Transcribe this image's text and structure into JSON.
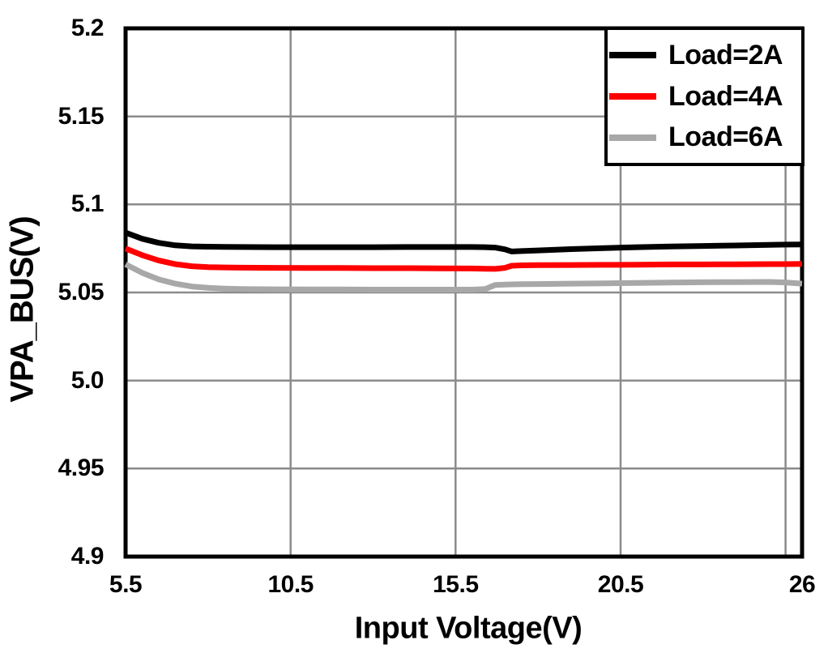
{
  "chart_data": {
    "type": "line",
    "title": "",
    "xlabel": "Input Voltage(V)",
    "ylabel": "VPA_BUS(V)",
    "xlim": [
      5.5,
      26
    ],
    "ylim": [
      4.9,
      5.2
    ],
    "grid": true,
    "legend_position": "top-right",
    "x_ticks": [
      {
        "value": 5.5,
        "label": "5.5"
      },
      {
        "value": 10.5,
        "label": "10.5"
      },
      {
        "value": 15.5,
        "label": "15.5"
      },
      {
        "value": 20.5,
        "label": "20.5"
      },
      {
        "value": 26,
        "label": "26"
      }
    ],
    "y_ticks": [
      {
        "value": 5.2,
        "label": "5.2"
      },
      {
        "value": 5.15,
        "label": "5.15"
      },
      {
        "value": 5.1,
        "label": "5.1"
      },
      {
        "value": 5.05,
        "label": "5.05"
      },
      {
        "value": 5.0,
        "label": "5.0"
      },
      {
        "value": 4.95,
        "label": "4.95"
      },
      {
        "value": 4.9,
        "label": "4.9"
      }
    ],
    "x_gridlines": [
      10.5,
      15.5,
      20.5,
      25.5
    ],
    "y_gridlines": [
      5.15,
      5.1,
      5.05,
      5.0,
      4.95
    ],
    "x": [
      5.5,
      6.0,
      6.5,
      7.0,
      7.5,
      8.0,
      8.5,
      9.0,
      10,
      11,
      12,
      13,
      14,
      15,
      16,
      16.4,
      16.7,
      17.0,
      17.2,
      17.5,
      18,
      19,
      20,
      21,
      22,
      23,
      24,
      25,
      25.5,
      26
    ],
    "series": [
      {
        "name": "Load=2A",
        "color": "#000000",
        "values": [
          5.084,
          5.0805,
          5.0782,
          5.0768,
          5.0762,
          5.076,
          5.0759,
          5.0758,
          5.0757,
          5.0757,
          5.0757,
          5.0757,
          5.0758,
          5.0758,
          5.0758,
          5.0757,
          5.0755,
          5.0745,
          5.0733,
          5.0735,
          5.0739,
          5.0746,
          5.0752,
          5.0757,
          5.0761,
          5.0764,
          5.0767,
          5.077,
          5.0772,
          5.0773
        ]
      },
      {
        "name": "Load=4A",
        "color": "#fe0000",
        "values": [
          5.075,
          5.0712,
          5.0682,
          5.0661,
          5.0649,
          5.0644,
          5.0642,
          5.0641,
          5.064,
          5.0639,
          5.0639,
          5.0638,
          5.0638,
          5.0637,
          5.0636,
          5.0635,
          5.0634,
          5.064,
          5.0652,
          5.0654,
          5.0655,
          5.0656,
          5.0657,
          5.0658,
          5.0659,
          5.0659,
          5.066,
          5.0661,
          5.0661,
          5.0662
        ]
      },
      {
        "name": "Load=6A",
        "color": "#a8a8a8",
        "values": [
          5.066,
          5.0612,
          5.0575,
          5.055,
          5.0534,
          5.0526,
          5.0522,
          5.052,
          5.0518,
          5.0517,
          5.0517,
          5.0516,
          5.0516,
          5.0516,
          5.0516,
          5.052,
          5.0543,
          5.0545,
          5.0546,
          5.0547,
          5.0548,
          5.055,
          5.0552,
          5.0554,
          5.0556,
          5.0558,
          5.0559,
          5.056,
          5.0557,
          5.055
        ]
      }
    ]
  },
  "colors": {
    "background": "#ffffff",
    "axis_border": "#000000",
    "gridline": "#8b8b8b",
    "text": "#000000"
  }
}
